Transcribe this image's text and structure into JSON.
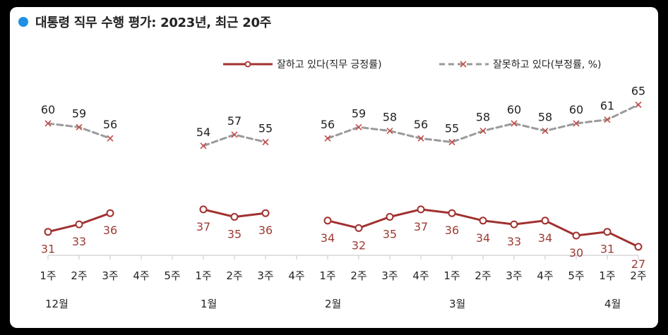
{
  "title": "대통령 직무 수행 평가: 2023년, 최근 20주",
  "colors": {
    "approve": "#a0312f",
    "disapprove": "#9a9a9a",
    "disapprove_marker": "#c0504d",
    "accent_dot": "#1e90e6",
    "label_approve": "#9e3b36",
    "label_disapprove": "#222222"
  },
  "chart_data": {
    "type": "line",
    "title": "대통령 직무 수행 평가: 2023년, 최근 20주",
    "x": [
      "1주",
      "2주",
      "3주",
      "4주",
      "5주",
      "1주",
      "2주",
      "3주",
      "4주",
      "1주",
      "2주",
      "3주",
      "4주",
      "1주",
      "2주",
      "3주",
      "4주",
      "5주",
      "1주",
      "2주"
    ],
    "months": [
      {
        "label": "12월",
        "start": 0
      },
      {
        "label": "1월",
        "start": 5
      },
      {
        "label": "2월",
        "start": 9
      },
      {
        "label": "3월",
        "start": 13
      },
      {
        "label": "4월",
        "start": 18
      }
    ],
    "series": [
      {
        "name": "잘하고 있다(직무 긍정률)",
        "style": "solid",
        "marker": "circle",
        "values": [
          31,
          33,
          36,
          null,
          null,
          37,
          35,
          36,
          null,
          34,
          32,
          35,
          37,
          36,
          34,
          33,
          34,
          30,
          31,
          27
        ]
      },
      {
        "name": "잘못하고 있다(부정률, %)",
        "style": "dashed",
        "marker": "x",
        "values": [
          60,
          59,
          56,
          null,
          null,
          54,
          57,
          55,
          null,
          56,
          59,
          58,
          56,
          55,
          58,
          60,
          58,
          60,
          61,
          65
        ]
      }
    ],
    "legend_position": "top-right",
    "grid": false
  }
}
